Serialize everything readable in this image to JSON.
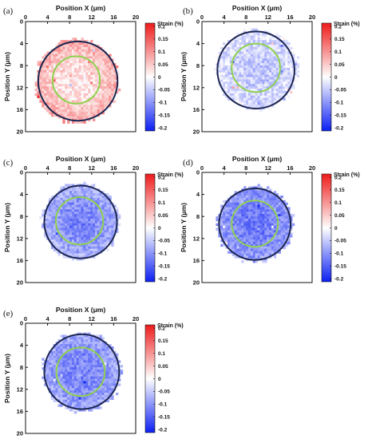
{
  "chart_data": [
    {
      "type": "heatmap",
      "panel_label": "(a)",
      "xlabel": "Position X (μm)",
      "ylabel": "Position Y (μm)",
      "xlim": [
        0,
        20
      ],
      "ylim": [
        20,
        0
      ],
      "x_ticks": [
        "0",
        "4",
        "8",
        "12",
        "16",
        "20"
      ],
      "y_ticks": [
        "0",
        "4",
        "8",
        "12",
        "16",
        "20"
      ],
      "colorbar": {
        "title": "Strain (%)",
        "ticks": [
          "0.2",
          "0.15",
          "0.1",
          "0.05",
          "0",
          "-0.05",
          "-0.1",
          "-0.15",
          "-0.2"
        ],
        "range": [
          -0.2,
          0.2
        ]
      },
      "outer_circle": {
        "cx": 9.5,
        "cy": 10.8,
        "r": 7.2
      },
      "inner_circle": {
        "cx": 9.2,
        "cy": 10.6,
        "r": 4.3
      },
      "map": {
        "cx": 9.3,
        "cy": 10.8,
        "r": 7.5,
        "mean_strain": 0.02,
        "rim_strain": 0.08
      }
    },
    {
      "type": "heatmap",
      "panel_label": "(b)",
      "xlabel": "Position X (μm)",
      "ylabel": "Position Y (μm)",
      "xlim": [
        0,
        20
      ],
      "ylim": [
        20,
        0
      ],
      "x_ticks": [
        "0",
        "4",
        "8",
        "12",
        "16",
        "20"
      ],
      "y_ticks": [
        "0",
        "4",
        "8",
        "12",
        "16",
        "20"
      ],
      "colorbar": {
        "title": "Strain (%)",
        "ticks": [
          "0.2",
          "0.15",
          "0.1",
          "0.05",
          "0",
          "-0.05",
          "-0.1",
          "-0.15",
          "-0.2"
        ],
        "range": [
          -0.2,
          0.2
        ]
      },
      "outer_circle": {
        "cx": 9.8,
        "cy": 8.8,
        "r": 7.0
      },
      "inner_circle": {
        "cx": 9.8,
        "cy": 8.4,
        "r": 4.4
      },
      "map": {
        "cx": 10.0,
        "cy": 8.8,
        "r": 7.4,
        "mean_strain": -0.05,
        "rim_strain": -0.02
      }
    },
    {
      "type": "heatmap",
      "panel_label": "(c)",
      "xlabel": "Position X (μm)",
      "ylabel": "Position Y (μm)",
      "xlim": [
        0,
        20
      ],
      "ylim": [
        20,
        0
      ],
      "x_ticks": [
        "0",
        "4",
        "8",
        "12",
        "16",
        "20"
      ],
      "y_ticks": [
        "0",
        "4",
        "8",
        "12",
        "16",
        "20"
      ],
      "colorbar": {
        "title": "Strain (%)",
        "ticks": [
          "0.2",
          "0.15",
          "0.1",
          "0.05",
          "0",
          "-0.05",
          "-0.1",
          "-0.15",
          "-0.2"
        ],
        "range": [
          -0.2,
          0.2
        ]
      },
      "outer_circle": {
        "cx": 10.0,
        "cy": 9.0,
        "r": 6.6
      },
      "inner_circle": {
        "cx": 9.8,
        "cy": 8.8,
        "r": 4.3
      },
      "map": {
        "cx": 10.0,
        "cy": 9.0,
        "r": 6.9,
        "mean_strain": -0.11,
        "rim_strain": -0.06
      }
    },
    {
      "type": "heatmap",
      "panel_label": "(d)",
      "xlabel": "Position X (μm)",
      "ylabel": "Position Y (μm)",
      "xlim": [
        0,
        20
      ],
      "ylim": [
        20,
        0
      ],
      "x_ticks": [
        "0",
        "4",
        "8",
        "12",
        "16",
        "20"
      ],
      "y_ticks": [
        "0",
        "4",
        "8",
        "12",
        "16",
        "20"
      ],
      "colorbar": {
        "title": "Strain (%)",
        "ticks": [
          "0.2",
          "0.15",
          "0.1",
          "0.05",
          "0",
          "-0.05",
          "-0.1",
          "-0.15",
          "-0.2"
        ],
        "range": [
          -0.2,
          0.2
        ]
      },
      "outer_circle": {
        "cx": 9.6,
        "cy": 9.4,
        "r": 6.5
      },
      "inner_circle": {
        "cx": 9.6,
        "cy": 9.3,
        "r": 4.2
      },
      "map": {
        "cx": 9.6,
        "cy": 9.4,
        "r": 6.8,
        "mean_strain": -0.12,
        "rim_strain": -0.08
      }
    },
    {
      "type": "heatmap",
      "panel_label": "(e)",
      "xlabel": "Position X (μm)",
      "ylabel": "Position Y (μm)",
      "xlim": [
        0,
        20
      ],
      "ylim": [
        20,
        0
      ],
      "x_ticks": [
        "0",
        "4",
        "8",
        "12",
        "16",
        "20"
      ],
      "y_ticks": [
        "0",
        "4",
        "8",
        "12",
        "16",
        "20"
      ],
      "colorbar": {
        "title": "Strain (%)",
        "ticks": [
          "0.2",
          "0.15",
          "0.1",
          "0.05",
          "0",
          "-0.05",
          "-0.1",
          "-0.15",
          "-0.2"
        ],
        "range": [
          -0.2,
          0.2
        ]
      },
      "outer_circle": {
        "cx": 10.2,
        "cy": 8.8,
        "r": 6.8
      },
      "inner_circle": {
        "cx": 10.0,
        "cy": 8.8,
        "r": 4.4
      },
      "map": {
        "cx": 10.2,
        "cy": 8.8,
        "r": 7.1,
        "mean_strain": -0.11,
        "rim_strain": -0.07
      }
    }
  ],
  "colors": {
    "colormap_low": "#0b1ff2",
    "colormap_mid": "#ffffff",
    "colormap_high": "#ee1b1b",
    "outer_circle": "#1b2550",
    "inner_circle": "#8fd14f",
    "frame": "#111111"
  }
}
